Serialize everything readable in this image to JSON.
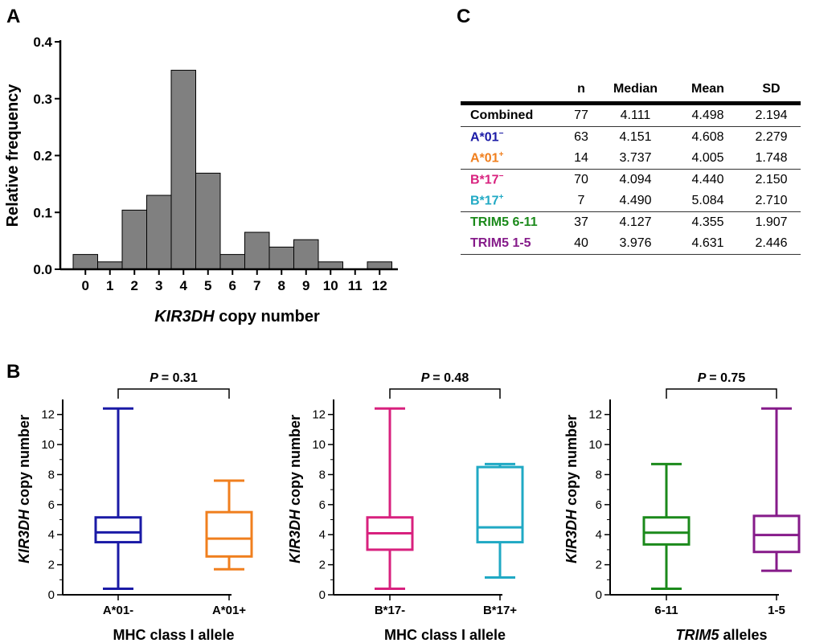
{
  "panel_labels": {
    "a": "A",
    "b": "B",
    "c": "C"
  },
  "chart_data": [
    {
      "type": "bar",
      "panel": "A",
      "categories": [
        "0",
        "1",
        "2",
        "3",
        "4",
        "5",
        "6",
        "7",
        "8",
        "9",
        "10",
        "11",
        "12"
      ],
      "values": [
        0.026,
        0.013,
        0.104,
        0.13,
        0.35,
        0.169,
        0.026,
        0.065,
        0.039,
        0.052,
        0.013,
        0.0,
        0.013
      ],
      "xlabel_italic": "KIR3DH",
      "xlabel_rest": " copy number",
      "ylabel": "Relative frequency",
      "ylim": [
        0,
        0.4
      ],
      "yticks": [
        "0.0",
        "0.1",
        "0.2",
        "0.3",
        "0.4"
      ],
      "bar_color": "#808080"
    },
    {
      "type": "box",
      "panel": "B",
      "p_label": "P",
      "p_value": "= 0.31",
      "xlabel": "MHC class I allele",
      "ylabel_italic": "KIR3DH",
      "ylabel_rest": " copy number",
      "ylim": [
        0,
        13
      ],
      "yticks": [
        "0",
        "2",
        "4",
        "6",
        "8",
        "10",
        "12"
      ],
      "boxes": [
        {
          "name": "A*01-",
          "min": 0.4,
          "q1": 3.5,
          "median": 4.15,
          "q3": 5.15,
          "max": 12.4,
          "color": "#1a1aa6"
        },
        {
          "name": "A*01+",
          "min": 1.7,
          "q1": 2.55,
          "median": 3.74,
          "q3": 5.5,
          "max": 7.6,
          "color": "#f07f1e"
        }
      ]
    },
    {
      "type": "box",
      "panel": "B",
      "p_label": "P",
      "p_value": "= 0.48",
      "xlabel": "MHC class I allele",
      "ylabel_italic": "KIR3DH",
      "ylabel_rest": " copy number",
      "ylim": [
        0,
        13
      ],
      "yticks": [
        "0",
        "2",
        "4",
        "6",
        "8",
        "10",
        "12"
      ],
      "boxes": [
        {
          "name": "B*17-",
          "min": 0.4,
          "q1": 3.0,
          "median": 4.09,
          "q3": 5.15,
          "max": 12.4,
          "color": "#d8217e"
        },
        {
          "name": "B*17+",
          "min": 1.15,
          "q1": 3.5,
          "median": 4.49,
          "q3": 8.5,
          "max": 8.7,
          "color": "#20a9c4"
        }
      ]
    },
    {
      "type": "box",
      "panel": "B",
      "p_label": "P",
      "p_value": "= 0.75",
      "xlabel_italic": "TRIM5",
      "xlabel_rest": " alleles",
      "ylabel_italic": "KIR3DH",
      "ylabel_rest": " copy number",
      "ylim": [
        0,
        13
      ],
      "yticks": [
        "0",
        "2",
        "4",
        "6",
        "8",
        "10",
        "12"
      ],
      "boxes": [
        {
          "name": "6-11",
          "min": 0.4,
          "q1": 3.35,
          "median": 4.13,
          "q3": 5.15,
          "max": 8.7,
          "color": "#1b8a1b"
        },
        {
          "name": "1-5",
          "min": 1.6,
          "q1": 2.85,
          "median": 3.98,
          "q3": 5.25,
          "max": 12.4,
          "color": "#861b8a"
        }
      ]
    },
    {
      "type": "table",
      "panel": "C",
      "columns": [
        "",
        "n",
        "Median",
        "Mean",
        "SD"
      ],
      "rows": [
        {
          "label": "Combined",
          "sup": "",
          "color": "#000000",
          "n": "77",
          "median": "4.111",
          "mean": "4.498",
          "sd": "2.194"
        },
        {
          "label": "A*01",
          "sup": "−",
          "color": "#1a1aa6",
          "n": "63",
          "median": "4.151",
          "mean": "4.608",
          "sd": "2.279"
        },
        {
          "label": "A*01",
          "sup": "+",
          "color": "#f07f1e",
          "n": "14",
          "median": "3.737",
          "mean": "4.005",
          "sd": "1.748"
        },
        {
          "label": "B*17",
          "sup": "−",
          "color": "#d8217e",
          "n": "70",
          "median": "4.094",
          "mean": "4.440",
          "sd": "2.150"
        },
        {
          "label": "B*17",
          "sup": "+",
          "color": "#20a9c4",
          "n": "7",
          "median": "4.490",
          "mean": "5.084",
          "sd": "2.710"
        },
        {
          "label": "TRIM5 6-11",
          "sup": "",
          "color": "#1b8a1b",
          "n": "37",
          "median": "4.127",
          "mean": "4.355",
          "sd": "1.907"
        },
        {
          "label": "TRIM5 1-5",
          "sup": "",
          "color": "#861b8a",
          "n": "40",
          "median": "3.976",
          "mean": "4.631",
          "sd": "2.446"
        }
      ]
    }
  ]
}
